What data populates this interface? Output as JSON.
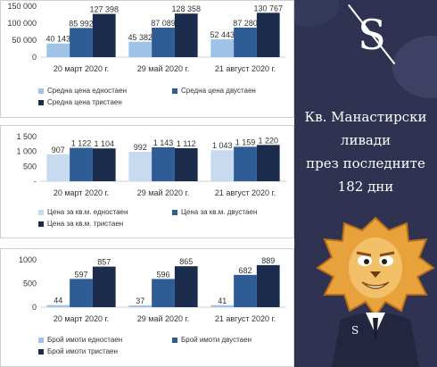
{
  "chart_data": [
    {
      "type": "bar",
      "categories": [
        "20 март 2020 г.",
        "29 май 2020 г.",
        "21 август 2020 г."
      ],
      "series": [
        {
          "name": "Средна цена едностаен",
          "values": [
            40143,
            45382,
            52443
          ],
          "color": "#9fc3e7"
        },
        {
          "name": "Средна цена двустаен",
          "values": [
            85992,
            87089,
            87280
          ],
          "color": "#2e5d95"
        },
        {
          "name": "Средна цена тристаен",
          "values": [
            127398,
            128358,
            130767
          ],
          "color": "#1c2c4c"
        }
      ],
      "data_labels": [
        [
          "40 143",
          "45 382",
          "52 443"
        ],
        [
          "85 992",
          "87 089",
          "87 280"
        ],
        [
          "127 398",
          "128 358",
          "130 767"
        ]
      ],
      "yticks": [
        "0",
        "50 000",
        "100 000",
        "150 000"
      ],
      "ylim": [
        0,
        150000
      ],
      "legend_position": "bottom",
      "grid": false
    },
    {
      "type": "bar",
      "categories": [
        "20 март 2020 г.",
        "29 май 2020 г.",
        "21 август 2020 г."
      ],
      "series": [
        {
          "name": "Цена за кв.м. едностаен",
          "values": [
            907,
            992,
            1043
          ],
          "color": "#c8daf0"
        },
        {
          "name": "Цена за кв.м. двустаен",
          "values": [
            1122,
            1143,
            1159
          ],
          "color": "#2e5d95"
        },
        {
          "name": "Цена за кв.м. тристаен",
          "values": [
            1104,
            1112,
            1220
          ],
          "color": "#1c2c4c"
        }
      ],
      "data_labels": [
        [
          "907",
          "992",
          "1 043"
        ],
        [
          "1 122",
          "1 143",
          "1 159"
        ],
        [
          "1 104",
          "1 112",
          "1 220"
        ]
      ],
      "yticks": [
        "-",
        "500",
        "1 000",
        "1 500"
      ],
      "ylim": [
        0,
        1500
      ],
      "legend_position": "bottom",
      "grid": false
    },
    {
      "type": "bar",
      "categories": [
        "20 март 2020 г.",
        "29 май 2020 г.",
        "21 август 2020 г."
      ],
      "series": [
        {
          "name": "Брой имоти едностаен",
          "values": [
            44,
            37,
            41
          ],
          "color": "#9fc3e7"
        },
        {
          "name": "Брой имоти двустаен",
          "values": [
            597,
            596,
            682
          ],
          "color": "#2e5d95"
        },
        {
          "name": "Брой имоти тристаен",
          "values": [
            857,
            865,
            889
          ],
          "color": "#1c2c4c"
        }
      ],
      "data_labels": [
        [
          "44",
          "37",
          "41"
        ],
        [
          "597",
          "596",
          "682"
        ],
        [
          "857",
          "865",
          "889"
        ]
      ],
      "yticks": [
        "0",
        "500",
        "1000"
      ],
      "ylim": [
        0,
        1000
      ],
      "legend_position": "bottom",
      "grid": false
    }
  ],
  "brand": {
    "logo_letter": "S",
    "headline_lines": [
      "Кв. Манастирски",
      "ливади",
      "през последните",
      "182 дни"
    ],
    "mascot_letter": "S",
    "colors": {
      "background": "#2f3250",
      "text": "#ffffff",
      "mascot_fur": "#e8a23b",
      "mascot_suit": "#23263f"
    }
  }
}
